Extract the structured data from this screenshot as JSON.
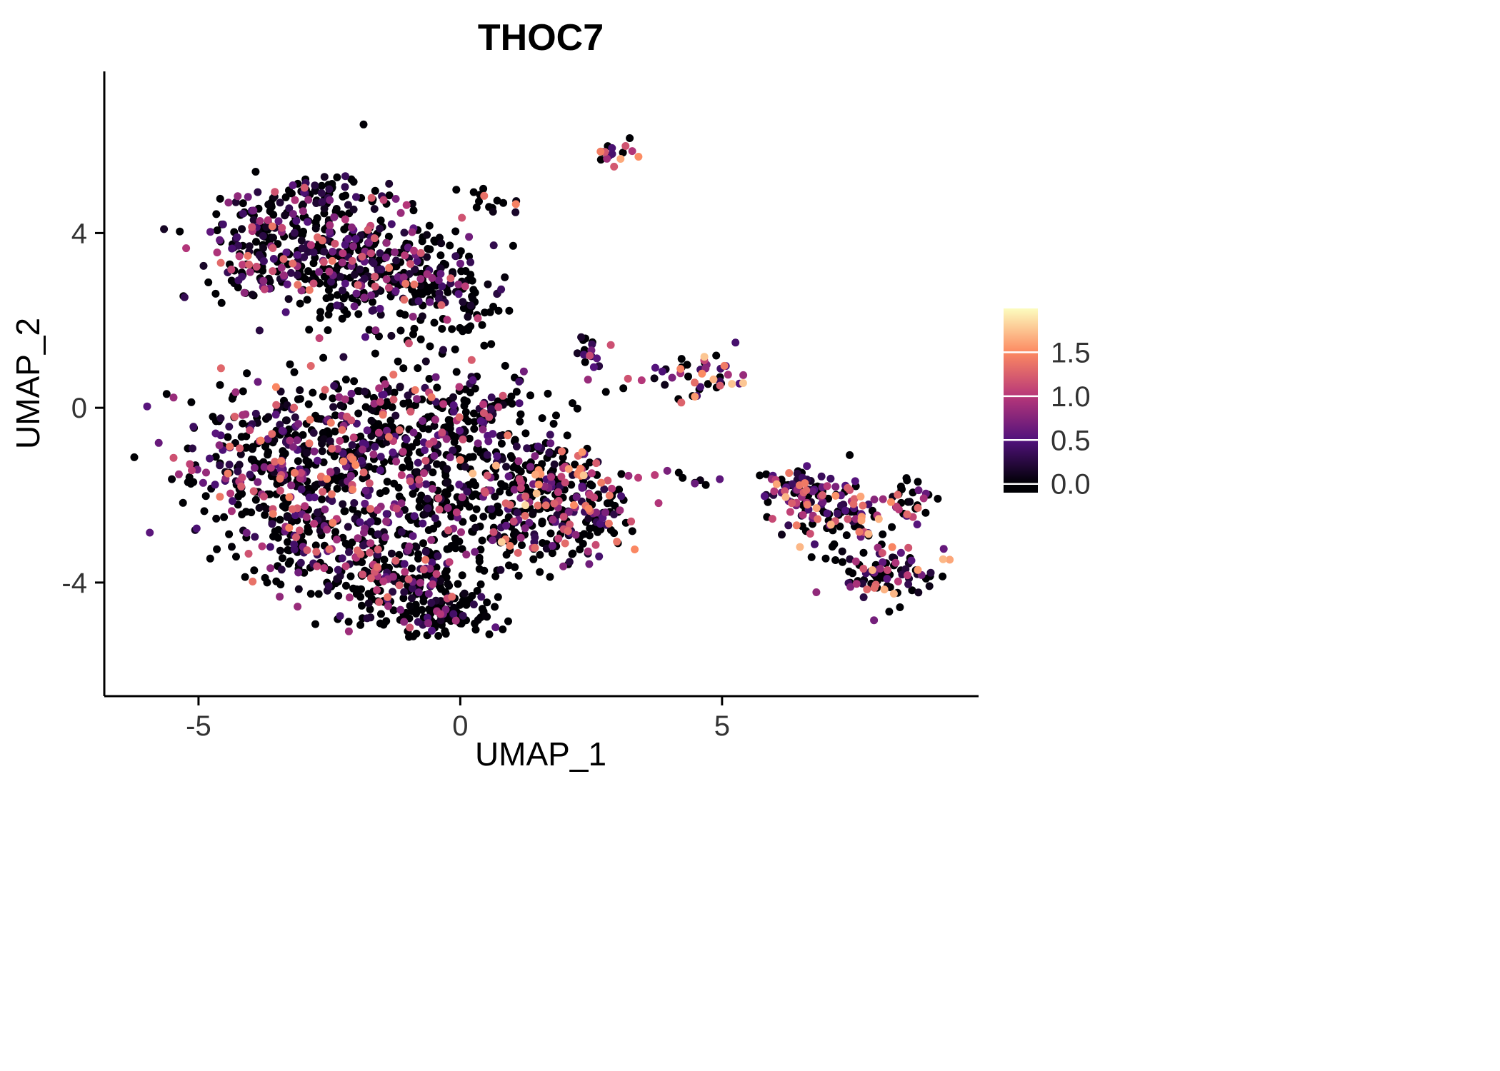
{
  "page": {
    "background": "#ffffff"
  },
  "chart_data": {
    "type": "scatter",
    "title": "THOC7",
    "subtitle": "",
    "xlabel": "UMAP_1",
    "ylabel": "UMAP_2",
    "xlim": [
      -6.8,
      9.9
    ],
    "ylim": [
      -6.6,
      7.7
    ],
    "xticks": [
      -5,
      0,
      5
    ],
    "yticks": [
      -4,
      0,
      4
    ],
    "grid": false,
    "background_color": "#ffffff",
    "axis_color": "#000000",
    "tick_label_color": "#333333",
    "point_radius": 5.5,
    "seed": 42,
    "legend": {
      "position": "right",
      "style": "colorbar",
      "ticks": [
        0.0,
        0.5,
        1.0,
        1.5
      ],
      "domain": [
        -0.1,
        2.0
      ],
      "value_max": 2.0,
      "tick_color": "#ffffff"
    },
    "colormap": {
      "name": "magma",
      "stops": [
        [
          0.0,
          "#000004"
        ],
        [
          0.25,
          "#51127c"
        ],
        [
          0.5,
          "#b73779"
        ],
        [
          0.75,
          "#fc8961"
        ],
        [
          1.0,
          "#fcfdbf"
        ]
      ]
    },
    "clusters": [
      {
        "name": "top-left-a",
        "cx": -3.4,
        "cy": 3.7,
        "sx": 0.85,
        "sy": 0.65,
        "n": 250,
        "p0": 0.45,
        "vmax": 1.4,
        "gamma": 1.6
      },
      {
        "name": "top-left-b",
        "cx": -1.8,
        "cy": 3.3,
        "sx": 0.85,
        "sy": 0.75,
        "n": 260,
        "p0": 0.5,
        "vmax": 1.4,
        "gamma": 1.6
      },
      {
        "name": "top-left-tip",
        "cx": -2.6,
        "cy": 4.85,
        "sx": 0.55,
        "sy": 0.22,
        "n": 50,
        "p0": 0.45,
        "vmax": 1.3,
        "gamma": 1.6
      },
      {
        "name": "top-mid",
        "cx": -0.2,
        "cy": 2.5,
        "sx": 0.55,
        "sy": 0.6,
        "n": 120,
        "p0": 0.6,
        "vmax": 1.2,
        "gamma": 1.8
      },
      {
        "name": "bridge-trail",
        "cx": 0.6,
        "cy": 4.7,
        "sx": 0.35,
        "sy": 0.25,
        "n": 14,
        "p0": 0.5,
        "vmax": 1.5,
        "gamma": 1.2
      },
      {
        "name": "top-small",
        "cx": 2.9,
        "cy": 5.75,
        "sx": 0.22,
        "sy": 0.18,
        "n": 16,
        "p0": 0.35,
        "vmax": 1.7,
        "gamma": 0.9
      },
      {
        "name": "mid-small",
        "cx": 2.35,
        "cy": 1.3,
        "sx": 0.2,
        "sy": 0.18,
        "n": 14,
        "p0": 0.4,
        "vmax": 1.4,
        "gamma": 1.2
      },
      {
        "name": "right-upper",
        "cx": 4.45,
        "cy": 0.75,
        "sx": 0.42,
        "sy": 0.3,
        "n": 46,
        "p0": 0.3,
        "vmax": 1.8,
        "gamma": 1.0
      },
      {
        "name": "main-a",
        "cx": -3.5,
        "cy": -1.2,
        "sx": 0.95,
        "sy": 0.85,
        "n": 300,
        "p0": 0.45,
        "vmax": 1.5,
        "gamma": 1.5
      },
      {
        "name": "main-b",
        "cx": -2.2,
        "cy": -2.6,
        "sx": 1.05,
        "sy": 0.95,
        "n": 320,
        "p0": 0.45,
        "vmax": 1.5,
        "gamma": 1.5
      },
      {
        "name": "main-c",
        "cx": -1.3,
        "cy": -0.6,
        "sx": 0.85,
        "sy": 0.75,
        "n": 230,
        "p0": 0.5,
        "vmax": 1.4,
        "gamma": 1.6
      },
      {
        "name": "main-d",
        "cx": -1.0,
        "cy": -3.9,
        "sx": 0.9,
        "sy": 0.55,
        "n": 190,
        "p0": 0.55,
        "vmax": 1.4,
        "gamma": 1.6
      },
      {
        "name": "bottom-tip",
        "cx": -0.3,
        "cy": -4.7,
        "sx": 0.5,
        "sy": 0.28,
        "n": 90,
        "p0": 0.7,
        "vmax": 1.1,
        "gamma": 2.0
      },
      {
        "name": "mid-upper",
        "cx": 0.3,
        "cy": -0.2,
        "sx": 0.55,
        "sy": 0.65,
        "n": 110,
        "p0": 0.6,
        "vmax": 1.3,
        "gamma": 1.6
      },
      {
        "name": "mid-lower",
        "cx": -0.1,
        "cy": -2.1,
        "sx": 0.6,
        "sy": 0.7,
        "n": 130,
        "p0": 0.6,
        "vmax": 1.3,
        "gamma": 1.6
      },
      {
        "name": "right-blob-a",
        "cx": 1.6,
        "cy": -1.7,
        "sx": 0.65,
        "sy": 0.6,
        "n": 170,
        "p0": 0.45,
        "vmax": 1.9,
        "gamma": 1.1
      },
      {
        "name": "right-blob-b",
        "cx": 2.4,
        "cy": -2.5,
        "sx": 0.45,
        "sy": 0.55,
        "n": 100,
        "p0": 0.55,
        "vmax": 1.5,
        "gamma": 1.4
      },
      {
        "name": "right-blob-c",
        "cx": 1.15,
        "cy": -2.9,
        "sx": 0.45,
        "sy": 0.35,
        "n": 60,
        "p0": 0.55,
        "vmax": 1.4,
        "gamma": 1.4
      },
      {
        "name": "mid-sparse",
        "cx": 2.2,
        "cy": 0.2,
        "sx": 0.8,
        "sy": 0.5,
        "n": 8,
        "p0": 0.5,
        "vmax": 1.2,
        "gamma": 1.2
      },
      {
        "name": "trail",
        "cx": 4.1,
        "cy": -1.6,
        "sx": 0.8,
        "sy": 0.12,
        "n": 12,
        "p0": 0.4,
        "vmax": 1.7,
        "gamma": 0.9
      },
      {
        "name": "far-a",
        "cx": 6.4,
        "cy": -1.8,
        "sx": 0.4,
        "sy": 0.22,
        "n": 55,
        "p0": 0.4,
        "vmax": 1.6,
        "gamma": 1.2
      },
      {
        "name": "far-b",
        "cx": 7.2,
        "cy": -2.4,
        "sx": 0.55,
        "sy": 0.45,
        "n": 120,
        "p0": 0.4,
        "vmax": 1.7,
        "gamma": 1.1
      },
      {
        "name": "far-c",
        "cx": 8.15,
        "cy": -3.8,
        "sx": 0.45,
        "sy": 0.3,
        "n": 85,
        "p0": 0.4,
        "vmax": 1.7,
        "gamma": 1.1
      },
      {
        "name": "far-d",
        "cx": 8.55,
        "cy": -2.2,
        "sx": 0.25,
        "sy": 0.35,
        "n": 30,
        "p0": 0.45,
        "vmax": 1.5,
        "gamma": 1.2
      }
    ]
  }
}
